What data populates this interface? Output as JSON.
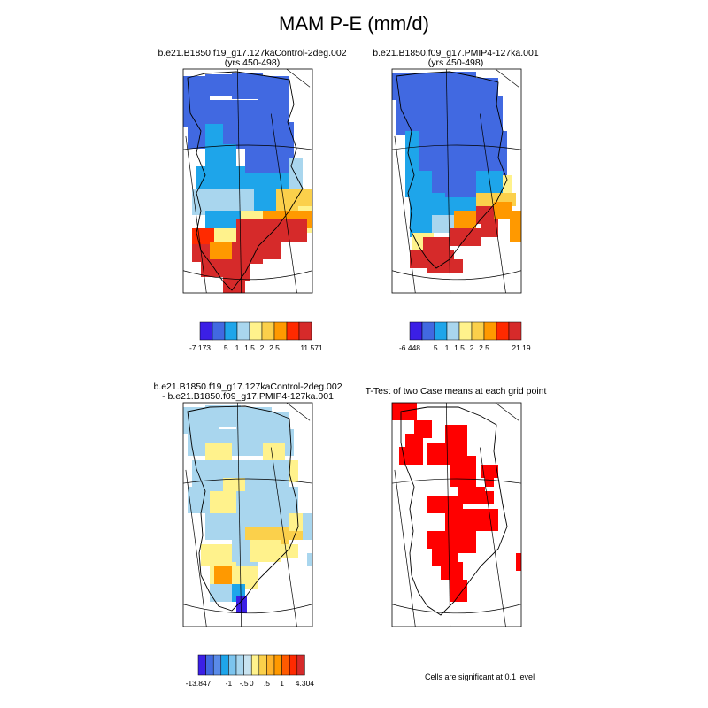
{
  "page": {
    "title": "MAM P-E (mm/d)"
  },
  "panels": [
    {
      "id": "control",
      "title_lines": [
        "b.e21.B1850.f19_g17.127kaControl-2deg.002",
        "(yrs 450-498)"
      ]
    },
    {
      "id": "pmip4",
      "title_lines": [
        "b.e21.B1850.f09_g17.PMIP4-127ka.001",
        "(yrs 450-498)"
      ]
    },
    {
      "id": "difference",
      "title_lines": [
        "b.e21.B1850.f19_g17.127kaControl-2deg.002",
        "- b.e21.B1850.f09_g17.PMIP4-127ka.001"
      ]
    },
    {
      "id": "ttest",
      "title_lines": [
        "T-Test of two Case means at each grid point"
      ]
    }
  ],
  "colorbars": [
    {
      "panel": "control",
      "colors": [
        "#3b1fe6",
        "#4169e1",
        "#1ea5ea",
        "#a9d6ee",
        "#fff28c",
        "#fbd04b",
        "#ff9900",
        "#ff2a00",
        "#d62a2a"
      ],
      "labels": [
        "-7.173",
        ".5",
        "1",
        "1.5",
        "2",
        "2.5",
        "11.571"
      ],
      "label_after_box": [
        0,
        2,
        3,
        4,
        5,
        6,
        9
      ]
    },
    {
      "panel": "pmip4",
      "colors": [
        "#3b1fe6",
        "#4169e1",
        "#1ea5ea",
        "#a9d6ee",
        "#fff28c",
        "#fbd04b",
        "#ff9900",
        "#ff2a00",
        "#d62a2a"
      ],
      "labels": [
        "-6.448",
        ".5",
        "1",
        "1.5",
        "2",
        "2.5",
        "21.19"
      ],
      "label_after_box": [
        0,
        2,
        3,
        4,
        5,
        6,
        9
      ]
    },
    {
      "panel": "difference",
      "colors": [
        "#3b1fe6",
        "#4169e1",
        "#5a8be8",
        "#1ea5ea",
        "#7cc4ee",
        "#a9d6ee",
        "#c8e3f0",
        "#fff28c",
        "#fbd04b",
        "#ffb32b",
        "#ff9900",
        "#ff5a00",
        "#ff2a00",
        "#d62a2a"
      ],
      "labels": [
        "-13.847",
        "-1",
        "-.5",
        "0",
        ".5",
        "1",
        "4.304"
      ],
      "label_after_box": [
        0,
        4,
        6,
        7,
        9,
        11,
        14
      ]
    }
  ],
  "significance_note": "Cells are significant at 0.1 level",
  "chart_data": [
    {
      "type": "heatmap",
      "title": "b.e21.B1850.f19_g17.127kaControl-2deg.002 (yrs 450-498)",
      "variable": "MAM P-E (mm/d)",
      "colorbar_levels": [
        -7.173,
        0.5,
        1,
        1.5,
        2,
        2.5,
        11.571
      ],
      "regions": [
        {
          "region": "north",
          "category": "< 0.5 (dark blue)"
        },
        {
          "region": "central-west",
          "category": "0.5-1 (light blue)"
        },
        {
          "region": "central-east",
          "category": "< 0.5 (dark blue)"
        },
        {
          "region": "south-east coast",
          "category": "1.5-2.5 (yellow)"
        },
        {
          "region": "south",
          "category": "> 2.5 (red/orange)"
        }
      ]
    },
    {
      "type": "heatmap",
      "title": "b.e21.B1850.f09_g17.PMIP4-127ka.001 (yrs 450-498)",
      "variable": "MAM P-E (mm/d)",
      "colorbar_levels": [
        -6.448,
        0.5,
        1,
        1.5,
        2,
        2.5,
        21.19
      ],
      "regions": [
        {
          "region": "north and center",
          "category": "< 0.5 (dark blue)"
        },
        {
          "region": "west margin",
          "category": "0.5-1 (light blue)"
        },
        {
          "region": "south-east coast",
          "category": "2-2.5 (orange)"
        },
        {
          "region": "south tip",
          "category": "> 2.5 (red)"
        }
      ]
    },
    {
      "type": "heatmap",
      "title": "b.e21.B1850.f19_g17.127kaControl-2deg.002 - b.e21.B1850.f09_g17.PMIP4-127ka.001",
      "variable": "difference (mm/d)",
      "colorbar_levels": [
        -13.847,
        -1,
        -0.5,
        0,
        0.5,
        1,
        4.304
      ],
      "regions": [
        {
          "region": "most of ice sheet",
          "category": "0 to -0.5 (light blue)"
        },
        {
          "region": "south-central and south-east",
          "category": "0 to 0.5 (yellow)"
        },
        {
          "region": "south tip",
          "category": "< -1 (blue)"
        }
      ]
    },
    {
      "type": "heatmap",
      "title": "T-Test of two Case means at each grid point",
      "variable": "significance",
      "note": "Cells are significant at 0.1 level",
      "regions": [
        {
          "region": "central spine and north-west",
          "category": "significant (red)"
        }
      ]
    }
  ]
}
